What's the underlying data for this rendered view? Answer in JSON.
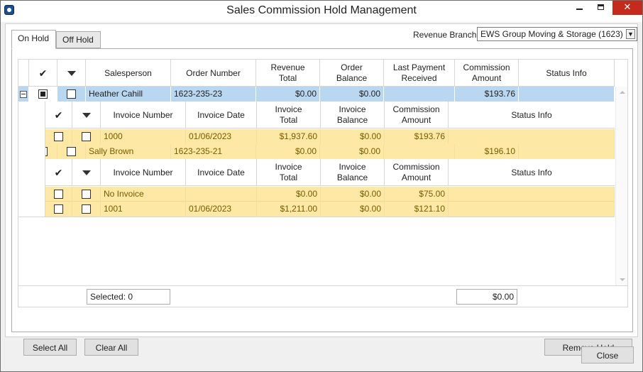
{
  "window": {
    "title": "Sales Commission Hold Management"
  },
  "tabs": [
    {
      "label": "On Hold",
      "active": true
    },
    {
      "label": "Off Hold",
      "active": false
    }
  ],
  "branch": {
    "label": "Revenue Branch:",
    "value": "EWS Group Moving & Storage (1623)"
  },
  "grid": {
    "columns": [
      "Salesperson",
      "Order Number",
      "Revenue Total",
      "Order Balance",
      "Last Payment Received",
      "Commission Amount",
      "Status Info"
    ],
    "sub_columns": [
      "Invoice Number",
      "Invoice Date",
      "Invoice Total",
      "Invoice Balance",
      "Commission Amount",
      "Status Info"
    ],
    "groups": [
      {
        "salesperson": "Heather Cahill",
        "order_number": "1623-235-23",
        "revenue_total": "$0.00",
        "order_balance": "$0.00",
        "last_payment": "",
        "commission": "$193.76",
        "status": "",
        "invoices": [
          {
            "number": "1000",
            "date": "01/06/2023",
            "total": "$1,937.60",
            "balance": "$0.00",
            "commission": "$193.76",
            "status": ""
          }
        ]
      },
      {
        "salesperson": "Sally Brown",
        "order_number": "1623-235-21",
        "revenue_total": "$0.00",
        "order_balance": "$0.00",
        "last_payment": "",
        "commission": "$196.10",
        "status": "",
        "invoices": [
          {
            "number": "No Invoice",
            "date": "",
            "total": "$0.00",
            "balance": "$0.00",
            "commission": "$75.00",
            "status": ""
          },
          {
            "number": "1001",
            "date": "01/06/2023",
            "total": "$1,211.00",
            "balance": "$0.00",
            "commission": "$121.10",
            "status": ""
          }
        ]
      }
    ],
    "footer": {
      "selected": "Selected: 0",
      "total": "$0.00"
    }
  },
  "buttons": {
    "select_all": "Select All",
    "clear_all": "Clear All",
    "remove_hold": "Remove Hold",
    "close": "Close"
  },
  "colors": {
    "selected_row": "#b9d7f0",
    "child_row": "#fde9a5",
    "close_button": "#c42b1c"
  }
}
